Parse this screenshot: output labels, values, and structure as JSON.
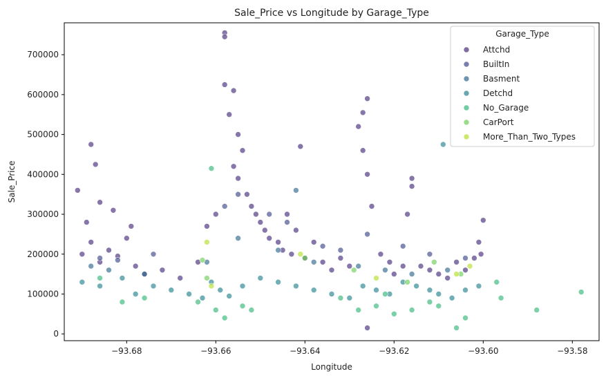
{
  "chart_data": {
    "type": "scatter",
    "title": "Sale_Price vs Longitude by Garage_Type",
    "xlabel": "Longitude",
    "ylabel": "Sale_Price",
    "xlim": [
      -93.694,
      -93.574
    ],
    "ylim": [
      -17000,
      780000
    ],
    "xticks": [
      -93.68,
      -93.66,
      -93.64,
      -93.62,
      -93.6,
      -93.58
    ],
    "xtick_labels": [
      "−93.68",
      "−93.66",
      "−93.64",
      "−93.62",
      "−93.60",
      "−93.58"
    ],
    "yticks": [
      0,
      100000,
      200000,
      300000,
      400000,
      500000,
      600000,
      700000
    ],
    "ytick_labels": [
      "0",
      "100000",
      "200000",
      "300000",
      "400000",
      "500000",
      "600000",
      "700000"
    ],
    "grid": false,
    "legend": {
      "title": "Garage_Type",
      "position": "top-right"
    },
    "series": [
      {
        "name": "Attchd",
        "color": "#472d7b",
        "points": [
          [
            -93.69,
            200000
          ],
          [
            -93.688,
            230000
          ],
          [
            -93.686,
            180000
          ],
          [
            -93.684,
            210000
          ],
          [
            -93.682,
            195000
          ],
          [
            -93.68,
            240000
          ],
          [
            -93.678,
            170000
          ],
          [
            -93.688,
            475000
          ],
          [
            -93.687,
            425000
          ],
          [
            -93.691,
            360000
          ],
          [
            -93.686,
            330000
          ],
          [
            -93.683,
            310000
          ],
          [
            -93.689,
            280000
          ],
          [
            -93.679,
            270000
          ],
          [
            -93.676,
            150000
          ],
          [
            -93.672,
            160000
          ],
          [
            -93.668,
            140000
          ],
          [
            -93.664,
            180000
          ],
          [
            -93.662,
            270000
          ],
          [
            -93.66,
            300000
          ],
          [
            -93.658,
            755000
          ],
          [
            -93.658,
            745000
          ],
          [
            -93.658,
            625000
          ],
          [
            -93.656,
            610000
          ],
          [
            -93.657,
            550000
          ],
          [
            -93.655,
            500000
          ],
          [
            -93.654,
            460000
          ],
          [
            -93.656,
            420000
          ],
          [
            -93.655,
            390000
          ],
          [
            -93.653,
            350000
          ],
          [
            -93.652,
            320000
          ],
          [
            -93.651,
            300000
          ],
          [
            -93.65,
            280000
          ],
          [
            -93.649,
            260000
          ],
          [
            -93.648,
            240000
          ],
          [
            -93.646,
            230000
          ],
          [
            -93.645,
            210000
          ],
          [
            -93.644,
            300000
          ],
          [
            -93.643,
            200000
          ],
          [
            -93.642,
            260000
          ],
          [
            -93.64,
            190000
          ],
          [
            -93.641,
            470000
          ],
          [
            -93.638,
            230000
          ],
          [
            -93.636,
            180000
          ],
          [
            -93.634,
            160000
          ],
          [
            -93.632,
            190000
          ],
          [
            -93.63,
            170000
          ],
          [
            -93.628,
            520000
          ],
          [
            -93.627,
            555000
          ],
          [
            -93.626,
            590000
          ],
          [
            -93.627,
            460000
          ],
          [
            -93.626,
            400000
          ],
          [
            -93.625,
            320000
          ],
          [
            -93.623,
            200000
          ],
          [
            -93.621,
            180000
          ],
          [
            -93.62,
            150000
          ],
          [
            -93.618,
            170000
          ],
          [
            -93.616,
            390000
          ],
          [
            -93.616,
            370000
          ],
          [
            -93.617,
            300000
          ],
          [
            -93.614,
            170000
          ],
          [
            -93.612,
            160000
          ],
          [
            -93.61,
            150000
          ],
          [
            -93.608,
            140000
          ],
          [
            -93.606,
            180000
          ],
          [
            -93.604,
            160000
          ],
          [
            -93.602,
            190000
          ],
          [
            -93.6,
            285000
          ],
          [
            -93.601,
            230000
          ],
          [
            -93.6005,
            200000
          ],
          [
            -93.626,
            15000
          ]
        ]
      },
      {
        "name": "BuiltIn",
        "color": "#3e4989",
        "points": [
          [
            -93.686,
            190000
          ],
          [
            -93.682,
            185000
          ],
          [
            -93.674,
            200000
          ],
          [
            -93.658,
            320000
          ],
          [
            -93.655,
            350000
          ],
          [
            -93.648,
            300000
          ],
          [
            -93.644,
            280000
          ],
          [
            -93.636,
            220000
          ],
          [
            -93.632,
            210000
          ],
          [
            -93.626,
            250000
          ],
          [
            -93.618,
            220000
          ],
          [
            -93.612,
            200000
          ],
          [
            -93.604,
            190000
          ]
        ]
      },
      {
        "name": "Basment",
        "color": "#31688e",
        "points": [
          [
            -93.688,
            170000
          ],
          [
            -93.684,
            160000
          ],
          [
            -93.676,
            150000
          ],
          [
            -93.662,
            180000
          ],
          [
            -93.655,
            240000
          ],
          [
            -93.646,
            210000
          ],
          [
            -93.642,
            360000
          ],
          [
            -93.638,
            180000
          ],
          [
            -93.628,
            170000
          ],
          [
            -93.622,
            160000
          ],
          [
            -93.616,
            150000
          ],
          [
            -93.608,
            160000
          ]
        ]
      },
      {
        "name": "Detchd",
        "color": "#26828e",
        "points": [
          [
            -93.69,
            130000
          ],
          [
            -93.686,
            120000
          ],
          [
            -93.681,
            140000
          ],
          [
            -93.678,
            100000
          ],
          [
            -93.674,
            120000
          ],
          [
            -93.67,
            110000
          ],
          [
            -93.666,
            100000
          ],
          [
            -93.663,
            90000
          ],
          [
            -93.661,
            130000
          ],
          [
            -93.659,
            110000
          ],
          [
            -93.657,
            95000
          ],
          [
            -93.654,
            120000
          ],
          [
            -93.65,
            140000
          ],
          [
            -93.646,
            130000
          ],
          [
            -93.642,
            120000
          ],
          [
            -93.638,
            110000
          ],
          [
            -93.634,
            100000
          ],
          [
            -93.63,
            90000
          ],
          [
            -93.627,
            120000
          ],
          [
            -93.624,
            110000
          ],
          [
            -93.621,
            100000
          ],
          [
            -93.618,
            130000
          ],
          [
            -93.615,
            120000
          ],
          [
            -93.612,
            110000
          ],
          [
            -93.61,
            100000
          ],
          [
            -93.609,
            475000
          ],
          [
            -93.607,
            90000
          ],
          [
            -93.604,
            110000
          ],
          [
            -93.601,
            120000
          ]
        ]
      },
      {
        "name": "No_Garage",
        "color": "#35b779",
        "points": [
          [
            -93.686,
            140000
          ],
          [
            -93.681,
            80000
          ],
          [
            -93.676,
            90000
          ],
          [
            -93.664,
            80000
          ],
          [
            -93.66,
            60000
          ],
          [
            -93.658,
            40000
          ],
          [
            -93.661,
            415000
          ],
          [
            -93.654,
            70000
          ],
          [
            -93.652,
            60000
          ],
          [
            -93.632,
            90000
          ],
          [
            -93.628,
            60000
          ],
          [
            -93.624,
            70000
          ],
          [
            -93.622,
            100000
          ],
          [
            -93.62,
            50000
          ],
          [
            -93.616,
            60000
          ],
          [
            -93.612,
            80000
          ],
          [
            -93.61,
            70000
          ],
          [
            -93.606,
            15000
          ],
          [
            -93.604,
            40000
          ],
          [
            -93.597,
            130000
          ],
          [
            -93.596,
            90000
          ],
          [
            -93.588,
            60000
          ],
          [
            -93.578,
            105000
          ]
        ]
      },
      {
        "name": "CarPort",
        "color": "#6ece58",
        "points": [
          [
            -93.663,
            185000
          ],
          [
            -93.662,
            140000
          ],
          [
            -93.64,
            190000
          ],
          [
            -93.629,
            160000
          ],
          [
            -93.617,
            130000
          ],
          [
            -93.611,
            180000
          ],
          [
            -93.605,
            150000
          ]
        ]
      },
      {
        "name": "More_Than_Two_Types",
        "color": "#b5de2b",
        "points": [
          [
            -93.662,
            230000
          ],
          [
            -93.661,
            120000
          ],
          [
            -93.641,
            200000
          ],
          [
            -93.624,
            140000
          ],
          [
            -93.606,
            150000
          ],
          [
            -93.603,
            170000
          ]
        ]
      }
    ]
  }
}
